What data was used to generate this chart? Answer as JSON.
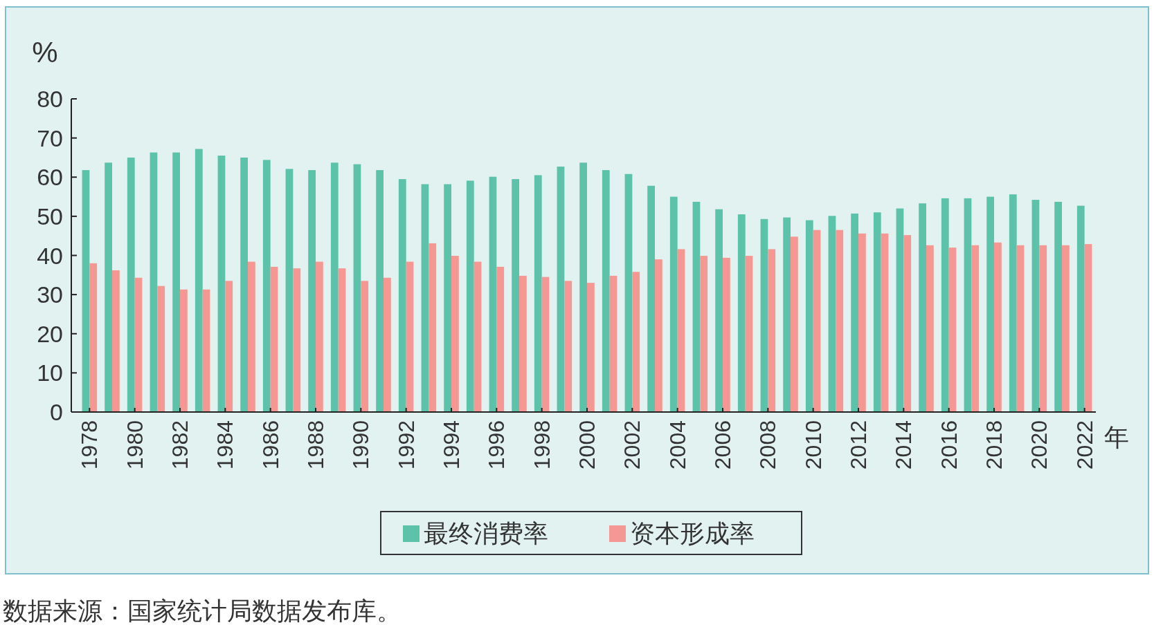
{
  "chart_data": {
    "type": "bar",
    "ylabel": "%",
    "xlabel": "年",
    "legend": "bottom",
    "categories": [
      "1978",
      null,
      "1980",
      null,
      "1982",
      null,
      "1984",
      null,
      "1986",
      null,
      "1988",
      null,
      "1990",
      null,
      "1992",
      null,
      "1994",
      null,
      "1996",
      null,
      "1998",
      null,
      "2000",
      null,
      "2002",
      null,
      "2004",
      null,
      "2006",
      null,
      "2008",
      null,
      "2010",
      null,
      "2012",
      null,
      "2014",
      null,
      "2016",
      null,
      "2018",
      null,
      "2020",
      null,
      "2022"
    ],
    "series": [
      {
        "name": "最终消费率",
        "color": "#5cc2aa",
        "values": [
          61.8,
          63.7,
          65,
          66.3,
          66.3,
          67.2,
          65.5,
          65,
          64.4,
          62.1,
          61.8,
          63.7,
          63.3,
          61.8,
          59.5,
          58.2,
          58.2,
          59.1,
          60.1,
          59.5,
          60.5,
          62.7,
          63.7,
          61.8,
          60.8,
          57.8,
          55,
          53.7,
          51.8,
          50.5,
          49.3,
          49.7,
          49,
          50.1,
          50.7,
          51,
          52,
          53.3,
          54.6,
          54.6,
          55,
          55.6,
          54.2,
          53.7,
          52.7
        ]
      },
      {
        "name": "资本形成率",
        "color": "#f59894",
        "values": [
          38,
          36.2,
          34.3,
          32.2,
          31.3,
          31.3,
          33.5,
          38.4,
          37.1,
          36.7,
          38.4,
          36.7,
          33.5,
          34.3,
          38.4,
          43.1,
          39.9,
          38.4,
          37.1,
          34.8,
          34.5,
          33.5,
          33,
          34.8,
          35.8,
          39,
          41.6,
          39.9,
          39.4,
          39.9,
          41.6,
          44.8,
          46.5,
          46.5,
          45.6,
          45.6,
          45.2,
          42.6,
          42,
          42.6,
          43.3,
          42.6,
          42.6,
          42.6,
          42.9
        ]
      }
    ],
    "ylim": [
      0,
      80
    ],
    "yticks": [
      0,
      10,
      20,
      30,
      40,
      50,
      60,
      70,
      80
    ],
    "annotations": [
      "数据来源：国家统计局数据发布库。"
    ]
  }
}
